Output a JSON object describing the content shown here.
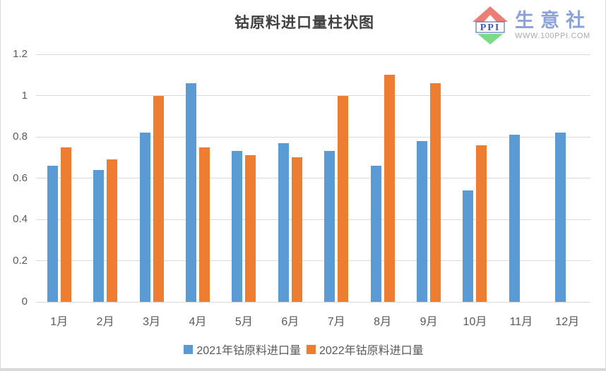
{
  "page_title": "钴原料进口量柱状图",
  "logo": {
    "ppi_label": "PPI",
    "brand_name": "生意社",
    "website": "WWW.100PPI.COM",
    "colors": {
      "roof": "#ec7e76",
      "diamond": "#7cd98a",
      "ppi_text": "#4059a9",
      "brand_text": "#8ba3d9",
      "url_text": "#a9a9a9"
    }
  },
  "chart_data": {
    "type": "bar",
    "title": "钴原料进口量柱状图",
    "categories": [
      "1月",
      "2月",
      "3月",
      "4月",
      "5月",
      "6月",
      "7月",
      "8月",
      "9月",
      "10月",
      "11月",
      "12月"
    ],
    "series": [
      {
        "name": "2021年钴原料进口量",
        "color": "#5B9BD5",
        "values": [
          0.66,
          0.64,
          0.82,
          1.06,
          0.73,
          0.77,
          0.73,
          0.66,
          0.78,
          0.54,
          0.81,
          0.82
        ]
      },
      {
        "name": "2022年钴原料进口量",
        "color": "#ED7D31",
        "values": [
          0.75,
          0.69,
          1.0,
          0.75,
          0.71,
          0.7,
          1.0,
          1.1,
          1.06,
          0.76,
          null,
          null
        ]
      }
    ],
    "ylim": [
      0,
      1.2
    ],
    "ytick_step": 0.2,
    "ytick_labels": [
      "0",
      "0.2",
      "0.4",
      "0.6",
      "0.8",
      "1",
      "1.2"
    ],
    "grid": true,
    "legend_position": "bottom",
    "gridline_color": "#d9d9d9",
    "tick_text_color": "#595959"
  }
}
